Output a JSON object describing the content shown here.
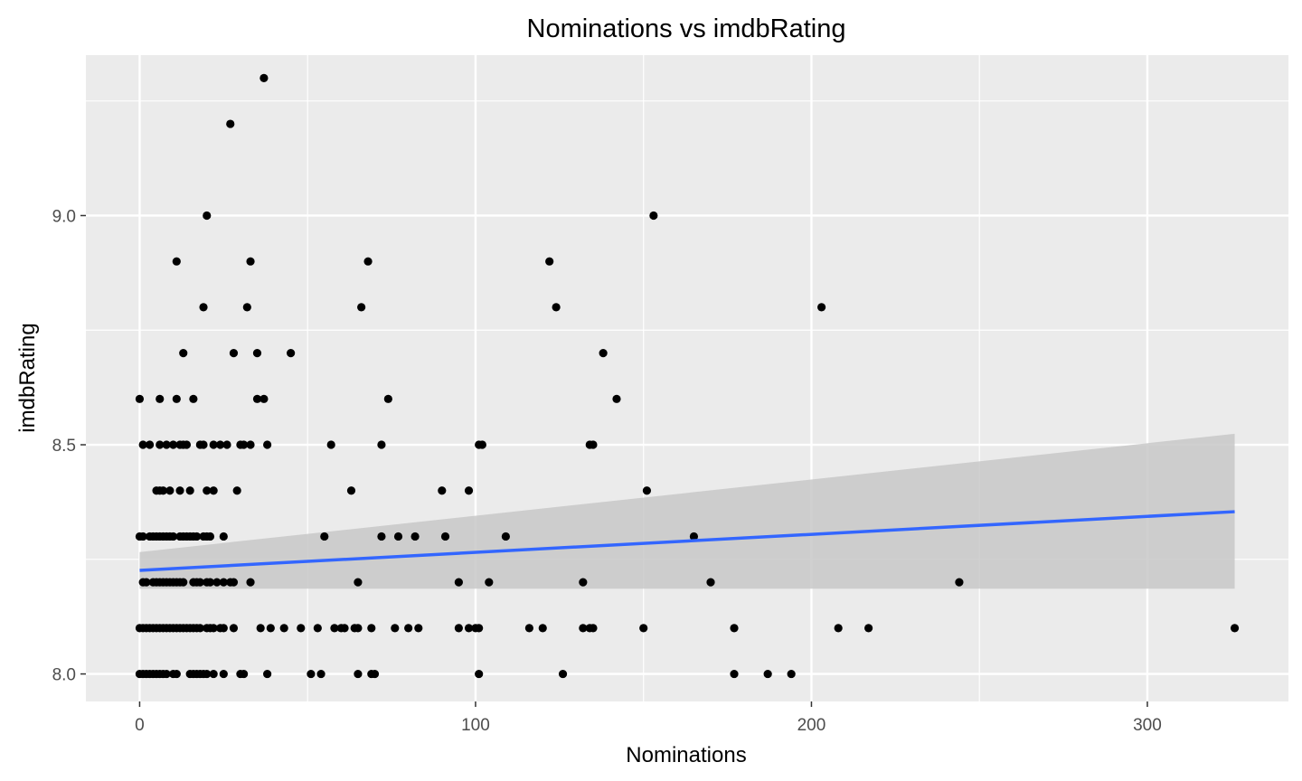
{
  "chart_data": {
    "type": "scatter",
    "title": "Nominations vs imdbRating",
    "xlabel": "Nominations",
    "ylabel": "imdbRating",
    "xlim": [
      -16,
      342
    ],
    "ylim": [
      7.94,
      9.35
    ],
    "x_ticks": [
      0,
      100,
      200,
      300
    ],
    "x_tick_labels": [
      "0",
      "100",
      "200",
      "300"
    ],
    "x_minor_ticks": [
      50,
      150,
      250
    ],
    "y_ticks": [
      8.0,
      8.5,
      9.0
    ],
    "y_tick_labels": [
      "8.0",
      "8.5",
      "9.0"
    ],
    "y_minor_ticks": [
      8.25,
      8.75,
      9.25
    ],
    "grid": true,
    "legend": "none",
    "colors": {
      "panel_background": "#ebebeb",
      "grid": "#ffffff",
      "points": "#000000",
      "trend_line": "#3366ff",
      "confidence_band": "#c8c8c8"
    },
    "points": [
      [
        37,
        9.3
      ],
      [
        27,
        9.2
      ],
      [
        20,
        9.0
      ],
      [
        153,
        9.0
      ],
      [
        11,
        8.9
      ],
      [
        33,
        8.9
      ],
      [
        68,
        8.9
      ],
      [
        122,
        8.9
      ],
      [
        19,
        8.8
      ],
      [
        32,
        8.8
      ],
      [
        66,
        8.8
      ],
      [
        124,
        8.8
      ],
      [
        203,
        8.8
      ],
      [
        13,
        8.7
      ],
      [
        28,
        8.7
      ],
      [
        35,
        8.7
      ],
      [
        45,
        8.7
      ],
      [
        138,
        8.7
      ],
      [
        0,
        8.6
      ],
      [
        6,
        8.6
      ],
      [
        11,
        8.6
      ],
      [
        16,
        8.6
      ],
      [
        35,
        8.6
      ],
      [
        37,
        8.6
      ],
      [
        74,
        8.6
      ],
      [
        142,
        8.6
      ],
      [
        1,
        8.5
      ],
      [
        3,
        8.5
      ],
      [
        6,
        8.5
      ],
      [
        8,
        8.5
      ],
      [
        10,
        8.5
      ],
      [
        12,
        8.5
      ],
      [
        13,
        8.5
      ],
      [
        14,
        8.5
      ],
      [
        18,
        8.5
      ],
      [
        19,
        8.5
      ],
      [
        22,
        8.5
      ],
      [
        24,
        8.5
      ],
      [
        26,
        8.5
      ],
      [
        30,
        8.5
      ],
      [
        31,
        8.5
      ],
      [
        33,
        8.5
      ],
      [
        38,
        8.5
      ],
      [
        57,
        8.5
      ],
      [
        72,
        8.5
      ],
      [
        101,
        8.5
      ],
      [
        102,
        8.5
      ],
      [
        134,
        8.5
      ],
      [
        135,
        8.5
      ],
      [
        5,
        8.4
      ],
      [
        6,
        8.4
      ],
      [
        7,
        8.4
      ],
      [
        9,
        8.4
      ],
      [
        12,
        8.4
      ],
      [
        15,
        8.4
      ],
      [
        20,
        8.4
      ],
      [
        22,
        8.4
      ],
      [
        29,
        8.4
      ],
      [
        63,
        8.4
      ],
      [
        90,
        8.4
      ],
      [
        98,
        8.4
      ],
      [
        151,
        8.4
      ],
      [
        0,
        8.3
      ],
      [
        1,
        8.3
      ],
      [
        3,
        8.3
      ],
      [
        4,
        8.3
      ],
      [
        5,
        8.3
      ],
      [
        6,
        8.3
      ],
      [
        7,
        8.3
      ],
      [
        8,
        8.3
      ],
      [
        9,
        8.3
      ],
      [
        10,
        8.3
      ],
      [
        12,
        8.3
      ],
      [
        13,
        8.3
      ],
      [
        14,
        8.3
      ],
      [
        15,
        8.3
      ],
      [
        16,
        8.3
      ],
      [
        17,
        8.3
      ],
      [
        19,
        8.3
      ],
      [
        20,
        8.3
      ],
      [
        21,
        8.3
      ],
      [
        25,
        8.3
      ],
      [
        55,
        8.3
      ],
      [
        72,
        8.3
      ],
      [
        77,
        8.3
      ],
      [
        82,
        8.3
      ],
      [
        91,
        8.3
      ],
      [
        109,
        8.3
      ],
      [
        165,
        8.3
      ],
      [
        1,
        8.2
      ],
      [
        2,
        8.2
      ],
      [
        4,
        8.2
      ],
      [
        5,
        8.2
      ],
      [
        6,
        8.2
      ],
      [
        7,
        8.2
      ],
      [
        8,
        8.2
      ],
      [
        9,
        8.2
      ],
      [
        10,
        8.2
      ],
      [
        11,
        8.2
      ],
      [
        12,
        8.2
      ],
      [
        13,
        8.2
      ],
      [
        16,
        8.2
      ],
      [
        17,
        8.2
      ],
      [
        18,
        8.2
      ],
      [
        20,
        8.2
      ],
      [
        21,
        8.2
      ],
      [
        23,
        8.2
      ],
      [
        25,
        8.2
      ],
      [
        27,
        8.2
      ],
      [
        28,
        8.2
      ],
      [
        33,
        8.2
      ],
      [
        65,
        8.2
      ],
      [
        95,
        8.2
      ],
      [
        104,
        8.2
      ],
      [
        132,
        8.2
      ],
      [
        170,
        8.2
      ],
      [
        244,
        8.2
      ],
      [
        0,
        8.1
      ],
      [
        1,
        8.1
      ],
      [
        2,
        8.1
      ],
      [
        3,
        8.1
      ],
      [
        4,
        8.1
      ],
      [
        5,
        8.1
      ],
      [
        6,
        8.1
      ],
      [
        7,
        8.1
      ],
      [
        8,
        8.1
      ],
      [
        9,
        8.1
      ],
      [
        10,
        8.1
      ],
      [
        11,
        8.1
      ],
      [
        12,
        8.1
      ],
      [
        13,
        8.1
      ],
      [
        14,
        8.1
      ],
      [
        15,
        8.1
      ],
      [
        16,
        8.1
      ],
      [
        17,
        8.1
      ],
      [
        18,
        8.1
      ],
      [
        20,
        8.1
      ],
      [
        21,
        8.1
      ],
      [
        22,
        8.1
      ],
      [
        24,
        8.1
      ],
      [
        25,
        8.1
      ],
      [
        28,
        8.1
      ],
      [
        36,
        8.1
      ],
      [
        39,
        8.1
      ],
      [
        43,
        8.1
      ],
      [
        48,
        8.1
      ],
      [
        53,
        8.1
      ],
      [
        58,
        8.1
      ],
      [
        60,
        8.1
      ],
      [
        61,
        8.1
      ],
      [
        64,
        8.1
      ],
      [
        65,
        8.1
      ],
      [
        69,
        8.1
      ],
      [
        76,
        8.1
      ],
      [
        80,
        8.1
      ],
      [
        83,
        8.1
      ],
      [
        95,
        8.1
      ],
      [
        98,
        8.1
      ],
      [
        100,
        8.1
      ],
      [
        101,
        8.1
      ],
      [
        116,
        8.1
      ],
      [
        120,
        8.1
      ],
      [
        132,
        8.1
      ],
      [
        134,
        8.1
      ],
      [
        135,
        8.1
      ],
      [
        150,
        8.1
      ],
      [
        177,
        8.1
      ],
      [
        208,
        8.1
      ],
      [
        217,
        8.1
      ],
      [
        326,
        8.1
      ],
      [
        0,
        8.0
      ],
      [
        1,
        8.0
      ],
      [
        2,
        8.0
      ],
      [
        3,
        8.0
      ],
      [
        4,
        8.0
      ],
      [
        5,
        8.0
      ],
      [
        6,
        8.0
      ],
      [
        7,
        8.0
      ],
      [
        8,
        8.0
      ],
      [
        10,
        8.0
      ],
      [
        11,
        8.0
      ],
      [
        15,
        8.0
      ],
      [
        16,
        8.0
      ],
      [
        17,
        8.0
      ],
      [
        18,
        8.0
      ],
      [
        19,
        8.0
      ],
      [
        20,
        8.0
      ],
      [
        22,
        8.0
      ],
      [
        25,
        8.0
      ],
      [
        30,
        8.0
      ],
      [
        31,
        8.0
      ],
      [
        38,
        8.0
      ],
      [
        51,
        8.0
      ],
      [
        54,
        8.0
      ],
      [
        65,
        8.0
      ],
      [
        69,
        8.0
      ],
      [
        70,
        8.0
      ],
      [
        101,
        8.0
      ],
      [
        126,
        8.0
      ],
      [
        177,
        8.0
      ],
      [
        187,
        8.0
      ],
      [
        194,
        8.0
      ]
    ],
    "trend": {
      "method": "linear",
      "x": [
        0,
        326
      ],
      "y": [
        8.226,
        8.354
      ],
      "ci_lower": [
        8.186,
        8.186
      ],
      "ci_upper": [
        8.266,
        8.524
      ]
    }
  }
}
